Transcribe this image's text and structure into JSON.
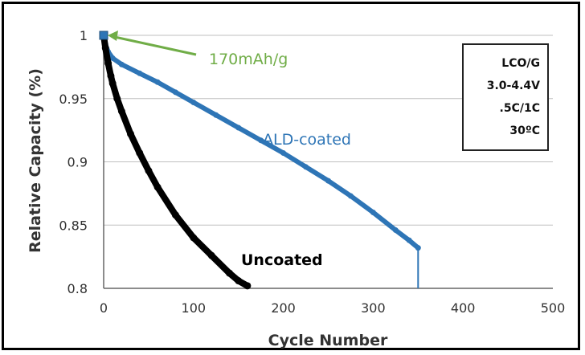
{
  "chart_data": {
    "type": "line",
    "xlabel": "Cycle Number",
    "ylabel": "Relative Capacity (%)",
    "xlim": [
      0,
      500
    ],
    "ylim": [
      0.8,
      1.0
    ],
    "xticks": [
      "0",
      "100",
      "200",
      "300",
      "400",
      "500"
    ],
    "yticks": [
      "0.8",
      "0.85",
      "0.9",
      "0.95",
      "1"
    ],
    "grid": "horizontal",
    "series": [
      {
        "name": "ALD-coated",
        "color": "#2e75b6",
        "x": [
          0,
          2,
          5,
          10,
          20,
          40,
          60,
          80,
          100,
          125,
          150,
          175,
          200,
          225,
          250,
          275,
          300,
          325,
          340,
          350
        ],
        "values": [
          1.0,
          0.993,
          0.987,
          0.982,
          0.977,
          0.97,
          0.963,
          0.955,
          0.947,
          0.937,
          0.927,
          0.917,
          0.907,
          0.896,
          0.885,
          0.873,
          0.86,
          0.846,
          0.838,
          0.832
        ]
      },
      {
        "name": "Uncoated",
        "color": "#000000",
        "x": [
          0,
          2,
          5,
          8,
          10,
          15,
          20,
          30,
          40,
          50,
          60,
          80,
          100,
          120,
          140,
          150,
          160
        ],
        "values": [
          1.0,
          0.99,
          0.978,
          0.968,
          0.962,
          0.95,
          0.94,
          0.922,
          0.907,
          0.893,
          0.88,
          0.858,
          0.84,
          0.826,
          0.812,
          0.806,
          0.802
        ]
      }
    ],
    "annotations": [
      {
        "text": "170mAh/g",
        "color": "#70ad47",
        "points_to": [
          0,
          1.0
        ]
      },
      {
        "text": "ALD-coated",
        "color": "#2e75b6"
      },
      {
        "text": "Uncoated",
        "color": "#000000"
      }
    ],
    "info_box": [
      "LCO/G",
      "3.0-4.4V",
      ".5C/1C",
      "30ºC"
    ]
  }
}
